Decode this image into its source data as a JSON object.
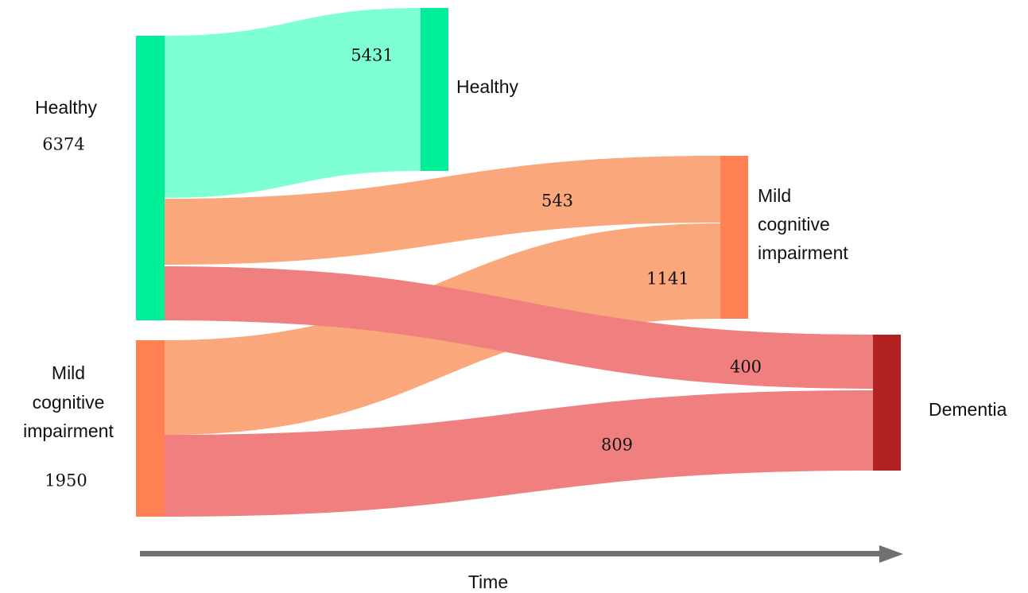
{
  "diagram": {
    "type": "sankey",
    "axis_label": "Time",
    "colors": {
      "healthy_node": "#00f09a",
      "healthy_flow": "#7fffd4",
      "mci_node": "#ff8052",
      "mci_flow": "#faa77c",
      "dementia_node": "#b22222",
      "dementia_flow": "#f08080",
      "arrow": "#707070"
    },
    "source_nodes": [
      {
        "id": "healthy_src",
        "label_lines": [
          "Healthy"
        ],
        "count": "6374"
      },
      {
        "id": "mci_src",
        "label_lines": [
          "Mild",
          "cognitive",
          "impairment"
        ],
        "count": "1950"
      }
    ],
    "target_nodes": [
      {
        "id": "healthy_tgt",
        "label_lines": [
          "Healthy"
        ]
      },
      {
        "id": "mci_tgt",
        "label_lines": [
          "Mild",
          "cognitive",
          "impairment"
        ]
      },
      {
        "id": "dementia_tgt",
        "label_lines": [
          "Dementia"
        ]
      }
    ],
    "flows": [
      {
        "id": "healthy_to_healthy",
        "from": "Healthy",
        "to": "Healthy",
        "value": "5431"
      },
      {
        "id": "healthy_to_mci",
        "from": "Healthy",
        "to": "Mild cognitive impairment",
        "value": "543"
      },
      {
        "id": "mci_to_mci",
        "from": "Mild cognitive impairment",
        "to": "Mild cognitive impairment",
        "value": "1141"
      },
      {
        "id": "healthy_to_dementia",
        "from": "Healthy",
        "to": "Dementia",
        "value": "400"
      },
      {
        "id": "mci_to_dementia",
        "from": "Mild cognitive impairment",
        "to": "Dementia",
        "value": "809"
      }
    ]
  }
}
